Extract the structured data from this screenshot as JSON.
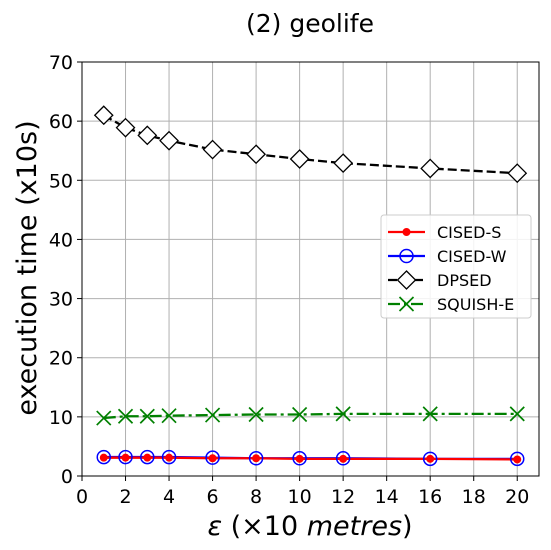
{
  "chart_data": {
    "type": "line",
    "title": "(2) geolife",
    "xlabel_prefix": "ε",
    "xlabel_mid": " (×10 ",
    "xlabel_unit": "metres",
    "xlabel_suffix": ")",
    "ylabel": "execution time (x10s)",
    "xlim": [
      0,
      21
    ],
    "ylim": [
      0,
      70
    ],
    "xticks": [
      0,
      2,
      4,
      6,
      8,
      10,
      12,
      14,
      16,
      18,
      20
    ],
    "yticks": [
      0,
      10,
      20,
      30,
      40,
      50,
      60,
      70
    ],
    "grid": true,
    "legend_position": "center-right",
    "x": [
      1,
      2,
      3,
      4,
      6,
      8,
      10,
      12,
      16,
      20
    ],
    "series": [
      {
        "name": "CISED-S",
        "color": "#ff0000",
        "marker": "dot",
        "dash": "solid",
        "values": [
          3.1,
          3.1,
          3.1,
          3.1,
          3.0,
          3.0,
          2.9,
          2.9,
          2.9,
          2.8
        ]
      },
      {
        "name": "CISED-W",
        "color": "#0000ff",
        "marker": "circle",
        "dash": "solid",
        "values": [
          3.2,
          3.2,
          3.2,
          3.2,
          3.1,
          3.0,
          3.0,
          3.0,
          2.9,
          2.9
        ]
      },
      {
        "name": "DPSED",
        "color": "#000000",
        "marker": "diamond",
        "dash": "dashed",
        "values": [
          61.0,
          58.9,
          57.6,
          56.7,
          55.2,
          54.4,
          53.6,
          52.9,
          52.0,
          51.2
        ]
      },
      {
        "name": "SQUISH-E",
        "color": "#008000",
        "marker": "x",
        "dash": "dashdot",
        "values": [
          9.8,
          10.1,
          10.1,
          10.2,
          10.3,
          10.4,
          10.4,
          10.5,
          10.5,
          10.5
        ]
      }
    ]
  }
}
